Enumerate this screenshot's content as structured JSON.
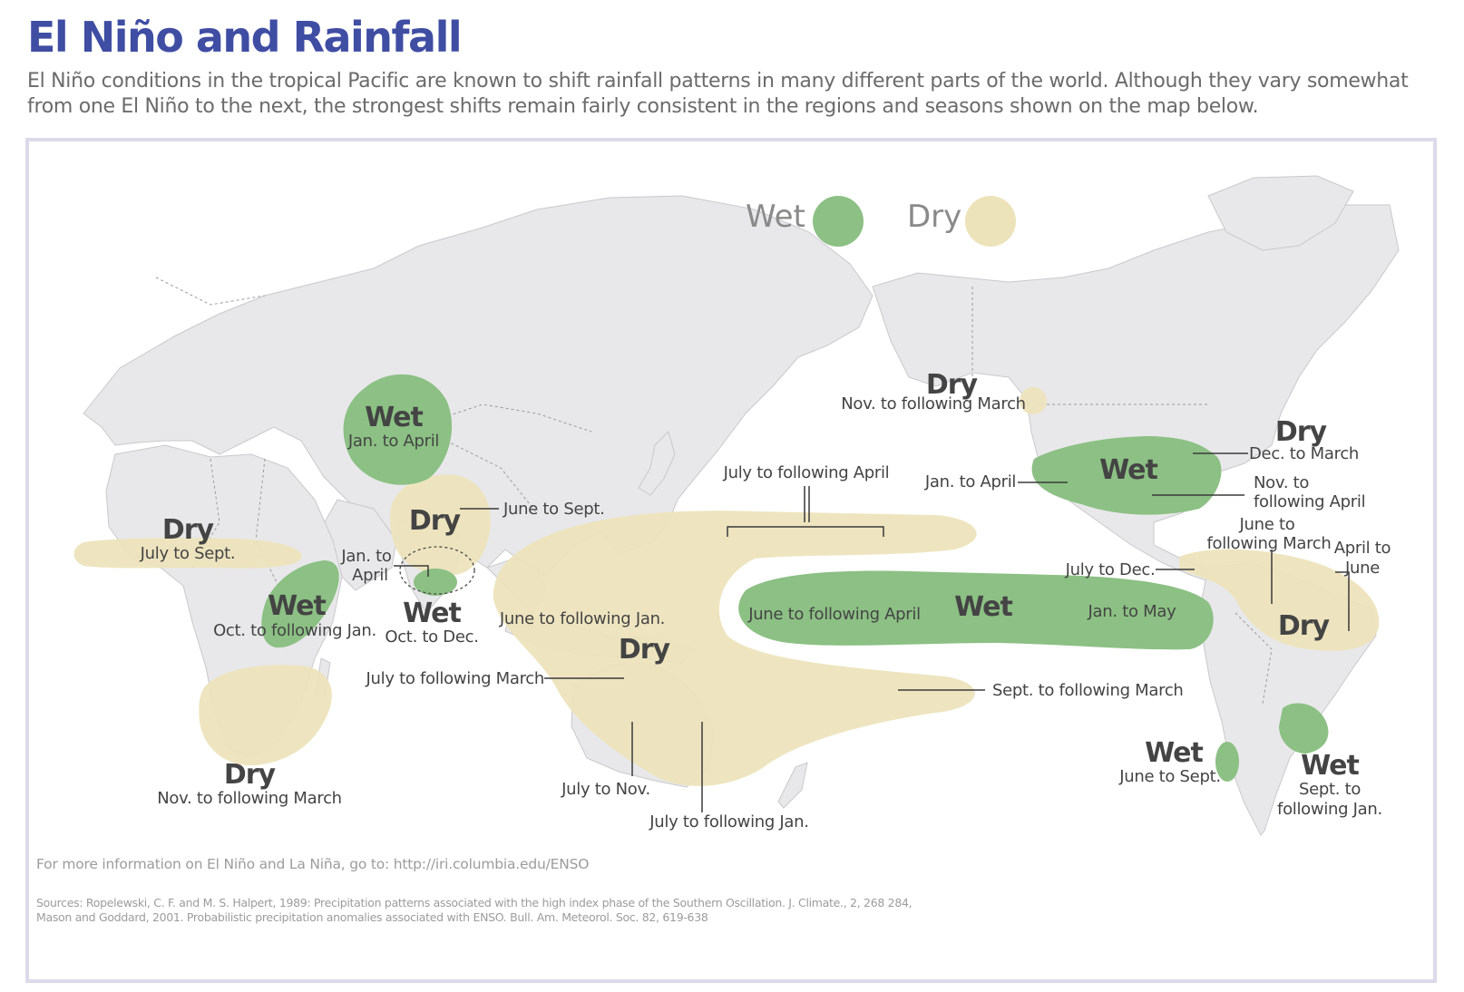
{
  "header": {
    "title": "El Niño and Rainfall",
    "subtitle": "El Niño conditions in the tropical Pacific are known to shift rainfall patterns in many different parts of the world. Although they vary somewhat from one El Niño to the next, the strongest shifts remain fairly consistent in the regions and seasons shown on the map below."
  },
  "legend": {
    "wet_label": "Wet",
    "dry_label": "Dry",
    "wet_color": "#8cc084",
    "dry_color": "#ede3bb"
  },
  "regions": {
    "central_asia": {
      "label": "Wet",
      "season": "Jan. to April"
    },
    "india": {
      "label": "Dry",
      "season": "June to Sept."
    },
    "sri_lanka": {
      "label": "Wet",
      "season_a": "Jan. to",
      "season_b": "April",
      "season_c": "Oct. to Dec."
    },
    "sahel": {
      "label": "Dry",
      "season": "July to Sept."
    },
    "east_africa": {
      "label": "Wet",
      "season": "Oct. to following Jan."
    },
    "southern_africa": {
      "label": "Dry",
      "season": "Nov. to following March"
    },
    "indonesia_australia": {
      "label": "Dry",
      "season_north": "June to following Jan.",
      "season_west": "July to following March",
      "season_south": "July to Nov.",
      "season_southeast": "July to following Jan."
    },
    "central_pacific_dry": {
      "season": "July to following April",
      "season_south": "Sept. to following March"
    },
    "central_pacific_wet": {
      "label": "Wet",
      "season_west": "June to following April",
      "season_east": "Jan. to May"
    },
    "pacific_northwest": {
      "label": "Dry",
      "season": "Nov. to following March"
    },
    "southern_us": {
      "label": "Wet",
      "season_west": "Jan. to April",
      "season_east_a": "Nov. to",
      "season_east_b": "following April"
    },
    "ohio_valley": {
      "label": "Dry",
      "season": "Dec. to March"
    },
    "northern_south_america": {
      "label": "Dry",
      "season_a1": "June to",
      "season_a2": "following March",
      "season_b1": "April to",
      "season_b2": "June",
      "season_c": "July to Dec."
    },
    "chile": {
      "label": "Wet",
      "season": "June to Sept."
    },
    "southeast_south_america": {
      "label": "Wet",
      "season_a": "Sept. to",
      "season_b": "following Jan."
    }
  },
  "footer": {
    "info": "For more information on El Niño and La Niña, go to: http://iri.columbia.edu/ENSO",
    "sources_line1": "Sources:  Ropelewski, C. F. and M. S. Halpert, 1989: Precipitation patterns associated with the high index phase of the Southern Oscillation. J. Climate., 2, 268 284,",
    "sources_line2": "Mason and Goddard, 2001. Probabilistic precipitation anomalies associated with ENSO.  Bull. Am. Meteorol. Soc. 82, 619-638"
  }
}
